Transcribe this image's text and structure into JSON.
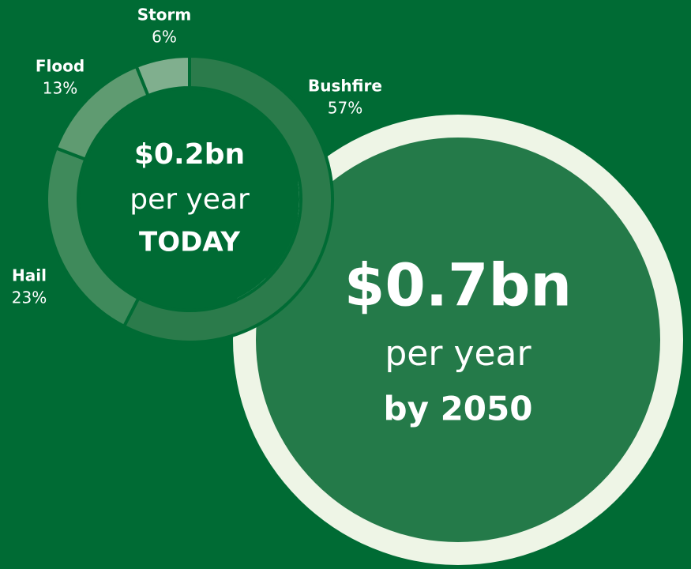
{
  "chart_data": {
    "type": "donut",
    "categories": [
      "Bushfire",
      "Hail",
      "Flood",
      "Storm"
    ],
    "values": [
      57,
      23,
      13,
      6
    ],
    "value_labels": [
      "57%",
      "23%",
      "13%",
      "6%"
    ],
    "colors": [
      "#2b7b4b",
      "#3f8a5b",
      "#5f9b71",
      "#80af8e"
    ],
    "center_text": {
      "amount": "$0.2bn",
      "rate": "per year",
      "when": "TODAY"
    },
    "future": {
      "amount": "$0.7bn",
      "rate": "per year",
      "when": "by 2050"
    }
  }
}
